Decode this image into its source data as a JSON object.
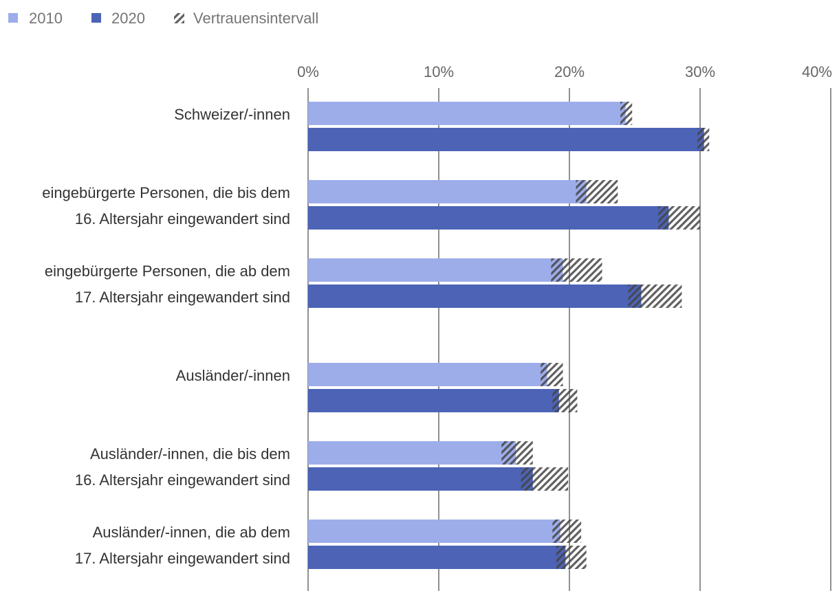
{
  "colors": {
    "s2010": "#9dadea",
    "s2020": "#4c63b6",
    "ci": "#555555",
    "grid": "#555555"
  },
  "chart_data": {
    "type": "bar",
    "orientation": "horizontal",
    "title": "",
    "xlabel": "",
    "ylabel": "",
    "xlim": [
      0,
      40
    ],
    "ticks": [
      0,
      10,
      20,
      30,
      40
    ],
    "tick_labels": [
      "0%",
      "10%",
      "20%",
      "30%",
      "40%"
    ],
    "grid": true,
    "legend_position": "top-left",
    "legend": [
      "2010",
      "2020",
      "Vertrauensintervall"
    ],
    "categories": [
      [
        "Schweizer/-innen"
      ],
      [
        "eingebürgerte Personen, die bis dem",
        "16. Altersjahr eingewandert sind"
      ],
      [
        "eingebürgerte Personen, die ab dem",
        "17. Altersjahr eingewandert sind"
      ],
      [
        "Ausländer/-innen"
      ],
      [
        "Ausländer/-innen, die bis dem",
        "16. Altersjahr eingewandert sind"
      ],
      [
        "Ausländer/-innen, die ab dem",
        "17. Altersjahr eingewandert sind"
      ]
    ],
    "series": [
      {
        "name": "2010",
        "values": [
          24.3,
          21.3,
          19.5,
          18.3,
          15.9,
          19.3
        ],
        "ci_low": [
          23.9,
          20.5,
          18.6,
          17.8,
          14.8,
          18.7
        ],
        "ci_high": [
          24.8,
          23.7,
          22.5,
          19.5,
          17.2,
          20.9
        ]
      },
      {
        "name": "2020",
        "values": [
          30.3,
          27.6,
          25.5,
          19.2,
          17.2,
          19.7
        ],
        "ci_low": [
          29.8,
          26.8,
          24.5,
          18.7,
          16.3,
          19.0
        ],
        "ci_high": [
          30.7,
          30.0,
          28.6,
          20.6,
          19.9,
          21.3
        ]
      }
    ]
  }
}
